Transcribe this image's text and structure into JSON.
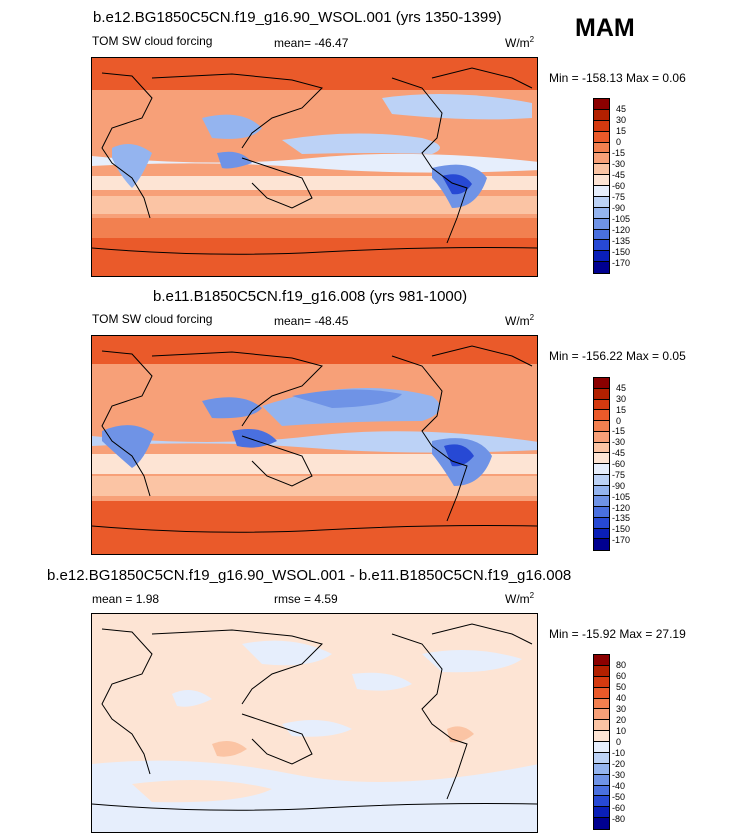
{
  "season": "MAM",
  "panels": [
    {
      "title": "b.e12.BG1850C5CN.f19_g16.90_WSOL.001 (yrs 1350-1399)",
      "left_label": "TOM SW cloud forcing",
      "stat": "mean= -46.47",
      "unit": "W/m",
      "unit_sup": "2",
      "minmax": "Min = -158.13 Max =   0.06",
      "levels": [
        "45",
        "30",
        "15",
        "0",
        "-15",
        "-30",
        "-45",
        "-60",
        "-75",
        "-90",
        "-105",
        "-120",
        "-135",
        "-150",
        "-170"
      ],
      "colors": [
        "#8b0000",
        "#b22000",
        "#d43a10",
        "#ea5a2a",
        "#f28050",
        "#f7a078",
        "#fbc4a4",
        "#fde4d4",
        "#e6eefc",
        "#bcd2f6",
        "#94b4ef",
        "#6f93e6",
        "#4a70df",
        "#2749d4",
        "#0a1fb8",
        "#000090"
      ]
    },
    {
      "title": "b.e11.B1850C5CN.f19_g16.008 (yrs 981-1000)",
      "left_label": "TOM SW cloud forcing",
      "stat": "mean= -48.45",
      "unit": "W/m",
      "unit_sup": "2",
      "minmax": "Min = -156.22 Max =   0.05",
      "levels": [
        "45",
        "30",
        "15",
        "0",
        "-15",
        "-30",
        "-45",
        "-60",
        "-75",
        "-90",
        "-105",
        "-120",
        "-135",
        "-150",
        "-170"
      ],
      "colors": [
        "#8b0000",
        "#b22000",
        "#d43a10",
        "#ea5a2a",
        "#f28050",
        "#f7a078",
        "#fbc4a4",
        "#fde4d4",
        "#e6eefc",
        "#bcd2f6",
        "#94b4ef",
        "#6f93e6",
        "#4a70df",
        "#2749d4",
        "#0a1fb8",
        "#000090"
      ]
    },
    {
      "title": "b.e12.BG1850C5CN.f19_g16.90_WSOL.001 - b.e11.B1850C5CN.f19_g16.008",
      "left_label": "mean =   1.98",
      "stat": "rmse =   4.59",
      "unit": "W/m",
      "unit_sup": "2",
      "minmax": "Min = -15.92 Max =  27.19",
      "levels": [
        "80",
        "60",
        "50",
        "40",
        "30",
        "20",
        "10",
        "0",
        "-10",
        "-20",
        "-30",
        "-40",
        "-50",
        "-60",
        "-80"
      ],
      "colors": [
        "#8b0000",
        "#b22000",
        "#d43a10",
        "#ea5a2a",
        "#f28050",
        "#f7a078",
        "#fbc4a4",
        "#fde4d4",
        "#e6eefc",
        "#bcd2f6",
        "#94b4ef",
        "#6f93e6",
        "#4a70df",
        "#2749d4",
        "#0a1fb8",
        "#000090"
      ]
    }
  ]
}
